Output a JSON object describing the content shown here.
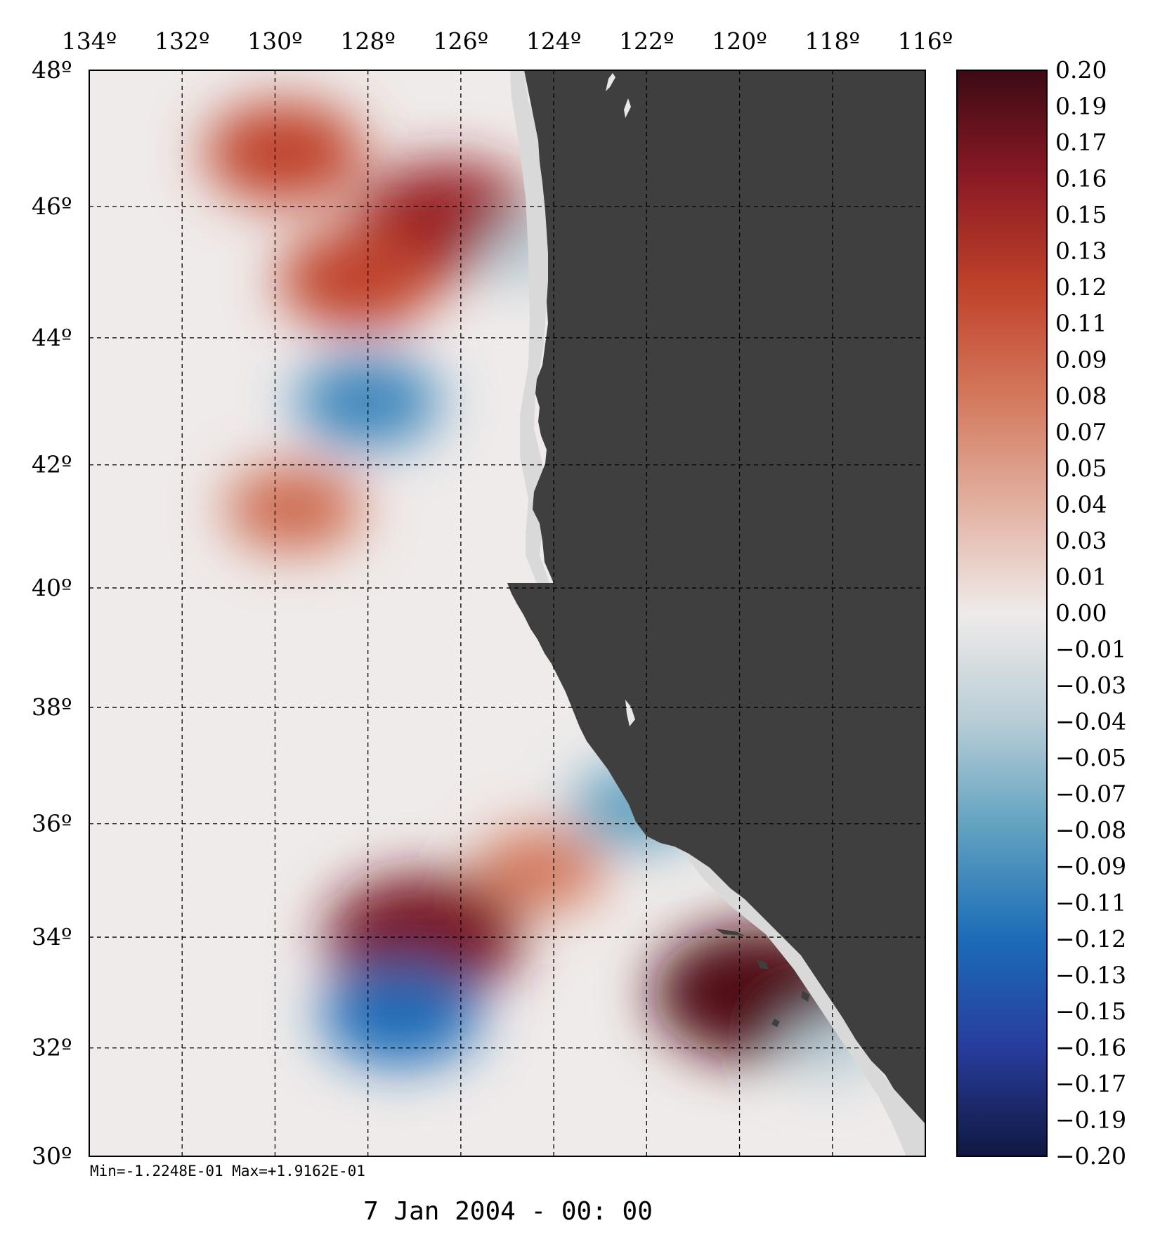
{
  "map": {
    "lon_ticks": [
      "134º",
      "132º",
      "130º",
      "128º",
      "126º",
      "124º",
      "122º",
      "120º",
      "118º",
      "116º"
    ],
    "lat_ticks": [
      "48º",
      "46º",
      "44º",
      "42º",
      "40º",
      "38º",
      "36º",
      "34º",
      "32º",
      "30º"
    ],
    "lon_range": [
      134,
      116
    ],
    "lat_range": [
      30,
      48
    ],
    "projection": "mercator",
    "grid": "dashed",
    "land_color": "#3f3f3f",
    "min_max_text": "Min=-1.2248E-01   Max=+1.9162E-01",
    "date_text": "7 Jan 2004 - 00: 00",
    "field_min": -0.12248,
    "field_max": 0.19162,
    "anomalies": [
      {
        "lon": 129.8,
        "lat": 46.8,
        "value": 0.12,
        "name": "north-warm-west"
      },
      {
        "lon": 126.3,
        "lat": 45.8,
        "value": 0.15,
        "name": "north-warm-core"
      },
      {
        "lon": 128.2,
        "lat": 44.9,
        "value": 0.12,
        "name": "north-warm-south"
      },
      {
        "lon": 124.5,
        "lat": 45.3,
        "value": -0.04,
        "name": "coastal-cool-north"
      },
      {
        "lon": 128.0,
        "lat": 43.0,
        "value": -0.1,
        "name": "cool-band-44"
      },
      {
        "lon": 129.6,
        "lat": 41.3,
        "value": 0.09,
        "name": "warm-42"
      },
      {
        "lon": 126.8,
        "lat": 34.0,
        "value": 0.17,
        "name": "warm-34-core"
      },
      {
        "lon": 124.3,
        "lat": 35.2,
        "value": 0.08,
        "name": "warm-35"
      },
      {
        "lon": 127.3,
        "lat": 32.6,
        "value": -0.12,
        "name": "cool-32"
      },
      {
        "lon": 122.2,
        "lat": 36.3,
        "value": -0.08,
        "name": "coastal-cool-central"
      },
      {
        "lon": 119.6,
        "lat": 33.0,
        "value": 0.19,
        "name": "bight-warm"
      },
      {
        "lon": 118.0,
        "lat": 32.0,
        "value": -0.04,
        "name": "bight-cool"
      }
    ]
  },
  "colorbar": {
    "labels": [
      "0.20",
      "0.19",
      "0.17",
      "0.16",
      "0.15",
      "0.13",
      "0.12",
      "0.11",
      "0.09",
      "0.08",
      "0.07",
      "0.05",
      "0.04",
      "0.03",
      "0.01",
      "0.00",
      "−0.01",
      "−0.03",
      "−0.04",
      "−0.05",
      "−0.07",
      "−0.08",
      "−0.09",
      "−0.11",
      "−0.12",
      "−0.13",
      "−0.15",
      "−0.16",
      "−0.17",
      "−0.19",
      "−0.20"
    ],
    "range": [
      -0.2,
      0.2
    ],
    "stops": [
      {
        "value": 0.2,
        "color": "#3d0a14"
      },
      {
        "value": 0.16,
        "color": "#8b1a24"
      },
      {
        "value": 0.12,
        "color": "#c0422a"
      },
      {
        "value": 0.08,
        "color": "#d3785c"
      },
      {
        "value": 0.04,
        "color": "#e2b0a0"
      },
      {
        "value": 0.0,
        "color": "#efebea"
      },
      {
        "value": -0.04,
        "color": "#b7cdd6"
      },
      {
        "value": -0.08,
        "color": "#5ea0c0"
      },
      {
        "value": -0.12,
        "color": "#1b6cb8"
      },
      {
        "value": -0.16,
        "color": "#283c9c"
      },
      {
        "value": -0.2,
        "color": "#101840"
      }
    ]
  }
}
